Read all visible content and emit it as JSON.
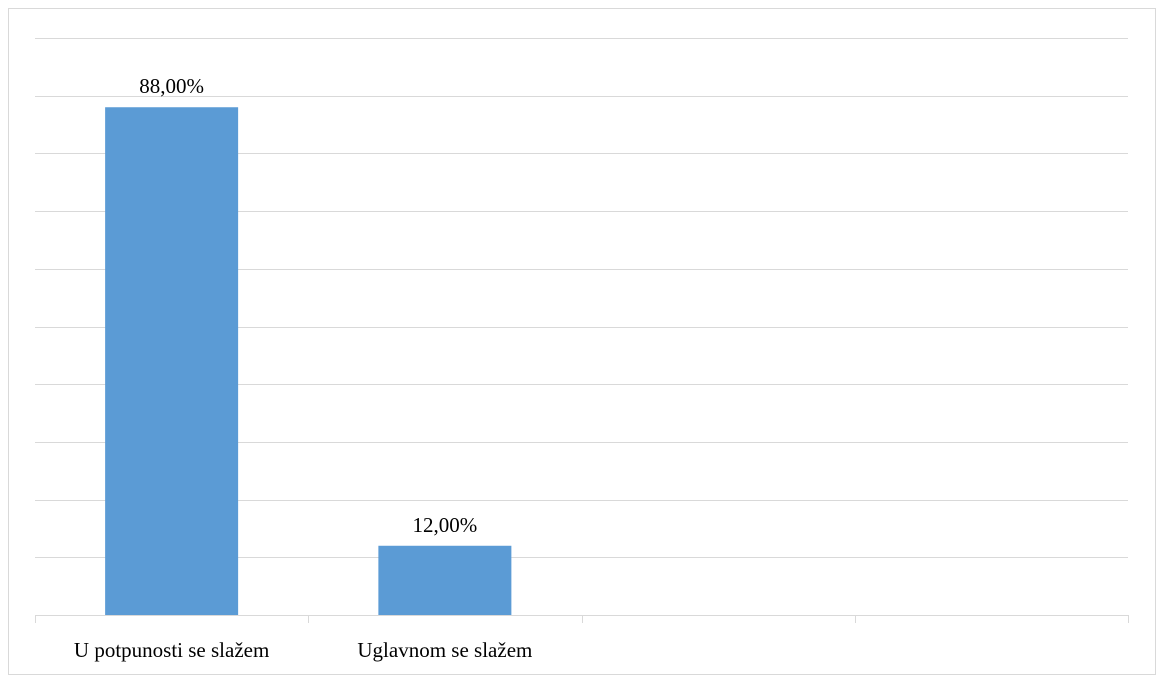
{
  "chart_data": {
    "type": "bar",
    "categories": [
      "U potpunosti se slažem",
      "Uglavnom se slažem",
      "",
      ""
    ],
    "values": [
      88.0,
      12.0,
      null,
      null
    ],
    "data_labels": [
      "88,00%",
      "12,00%",
      "",
      ""
    ],
    "ylim": [
      0,
      100
    ],
    "gridline_step": 10,
    "grid": true,
    "legend": "none",
    "title": "",
    "xlabel": "",
    "ylabel": "",
    "colors": {
      "bar": "#5b9bd5",
      "grid": "#d9d9d9",
      "border": "#d9d9d9",
      "text": "#000000"
    }
  }
}
